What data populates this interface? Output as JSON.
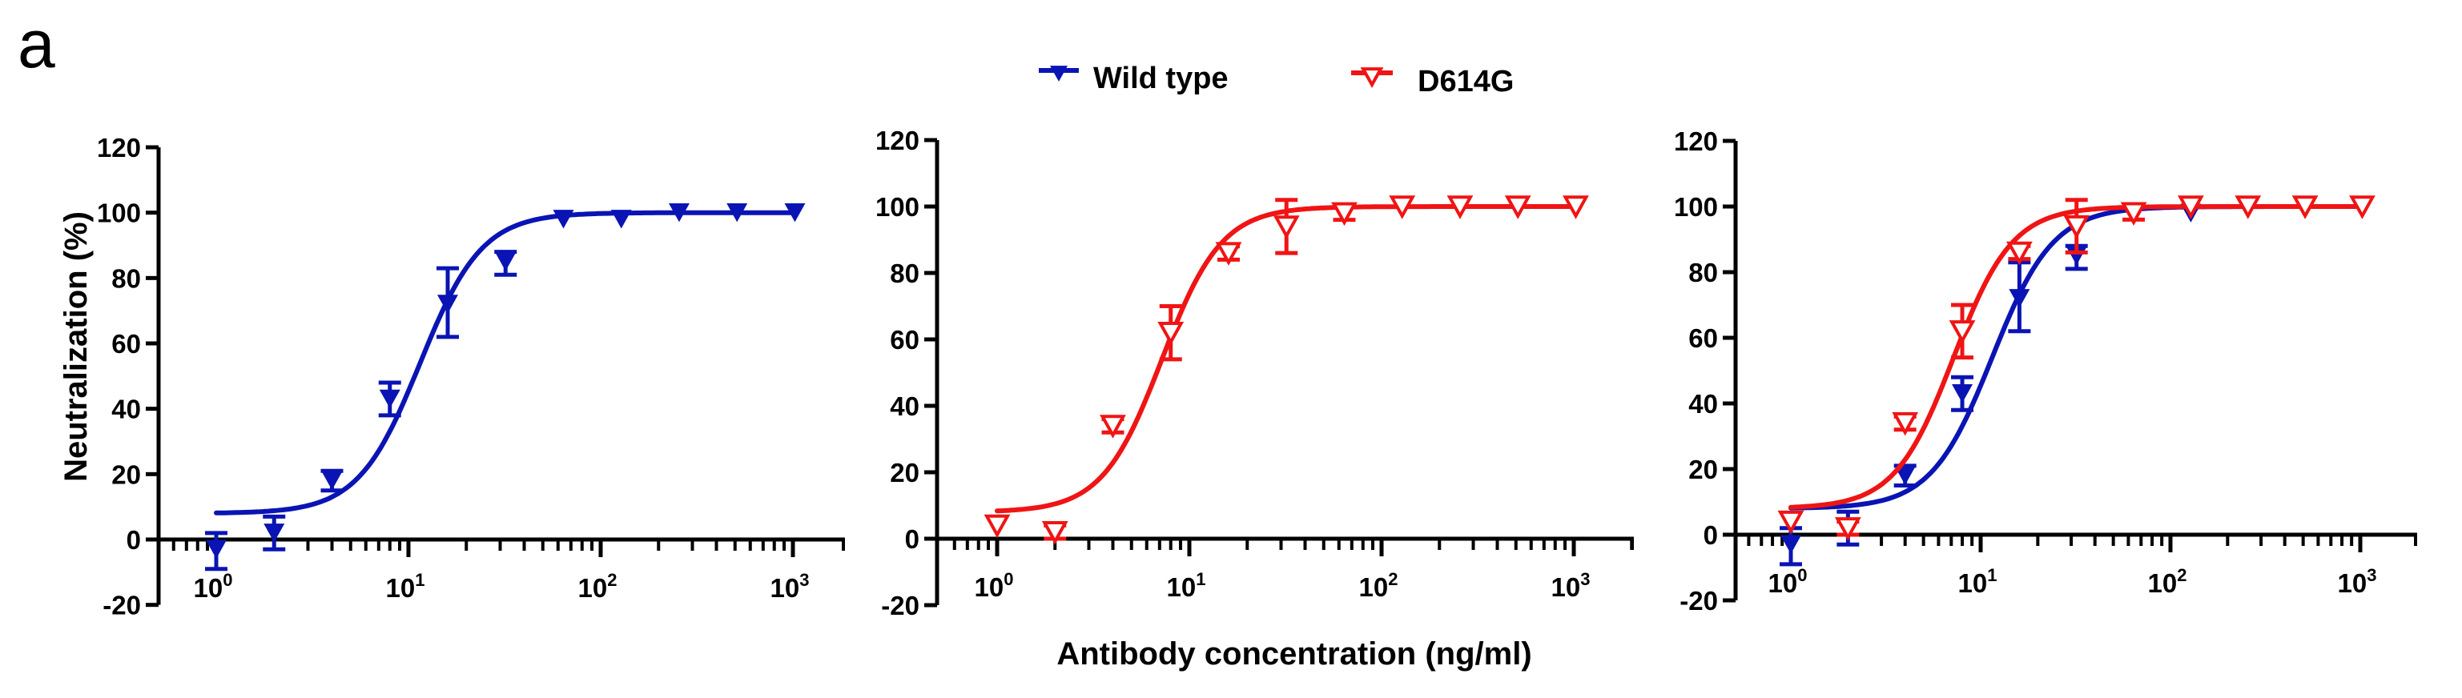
{
  "panel_label": "a",
  "legend": [
    {
      "label": "Wild type",
      "color": "#0a14b4",
      "marker": "filled-down-triangle"
    },
    {
      "label": "D614G",
      "color": "#f01414",
      "marker": "open-down-triangle"
    }
  ],
  "shared_xlabel": "Antibody concentration (ng/ml)",
  "chart_data": [
    {
      "type": "scatter",
      "panel": 1,
      "xscale": "log",
      "xlabel": "",
      "ylabel": "Neutralization (%)",
      "xlim": [
        0.5,
        2100
      ],
      "ylim": [
        -20,
        120
      ],
      "yticks": [
        -20,
        0,
        20,
        40,
        60,
        80,
        100,
        120
      ],
      "xticks": [
        {
          "base": "10",
          "exp": "0",
          "value": 1
        },
        {
          "base": "10",
          "exp": "1",
          "value": 10
        },
        {
          "base": "10",
          "exp": "2",
          "value": 100
        },
        {
          "base": "10",
          "exp": "3",
          "value": 1000
        }
      ],
      "series": [
        {
          "name": "Wild type",
          "x": [
            1,
            2,
            4,
            8,
            16,
            32,
            64,
            128,
            256,
            512,
            1024
          ],
          "y": [
            -3,
            2,
            18,
            43,
            72,
            85,
            98,
            98,
            100,
            100,
            100
          ],
          "err_low": [
            -9,
            -3,
            15,
            38,
            62,
            81,
            98,
            98,
            100,
            100,
            100
          ],
          "err_high": [
            2,
            7,
            21,
            48,
            83,
            88,
            98,
            98,
            100,
            100,
            100
          ],
          "fit": {
            "bottom": 8,
            "top": 100,
            "ic50": 11.5,
            "hill": 2.7
          }
        }
      ]
    },
    {
      "type": "scatter",
      "panel": 2,
      "xscale": "log",
      "xlabel": "Antibody concentration (ng/ml)",
      "ylabel": "",
      "xlim": [
        0.5,
        2100
      ],
      "ylim": [
        -20,
        120
      ],
      "yticks": [
        -20,
        0,
        20,
        40,
        60,
        80,
        100,
        120
      ],
      "xticks": [
        {
          "base": "10",
          "exp": "0",
          "value": 1
        },
        {
          "base": "10",
          "exp": "1",
          "value": 10
        },
        {
          "base": "10",
          "exp": "2",
          "value": 100
        },
        {
          "base": "10",
          "exp": "3",
          "value": 1000
        }
      ],
      "series": [
        {
          "name": "D614G",
          "x": [
            1,
            2,
            4,
            8,
            16,
            32,
            64,
            128,
            256,
            512,
            1024
          ],
          "y": [
            4,
            2,
            34,
            62,
            86,
            94,
            98,
            100,
            100,
            100,
            100
          ],
          "err_low": [
            4,
            0,
            32,
            54,
            84,
            86,
            96,
            100,
            100,
            100,
            100
          ],
          "err_high": [
            4,
            4,
            36,
            70,
            88,
            102,
            100,
            100,
            100,
            100,
            100
          ],
          "fit": {
            "bottom": 8,
            "top": 100,
            "ic50": 7.2,
            "hill": 2.8
          }
        }
      ]
    },
    {
      "type": "scatter",
      "panel": 3,
      "xscale": "log",
      "xlabel": "",
      "ylabel": "",
      "xlim": [
        0.5,
        2100
      ],
      "ylim": [
        -20,
        120
      ],
      "yticks": [
        -20,
        0,
        20,
        40,
        60,
        80,
        100,
        120
      ],
      "xticks": [
        {
          "base": "10",
          "exp": "0",
          "value": 1
        },
        {
          "base": "10",
          "exp": "1",
          "value": 10
        },
        {
          "base": "10",
          "exp": "2",
          "value": 100
        },
        {
          "base": "10",
          "exp": "3",
          "value": 1000
        }
      ],
      "series": [
        {
          "name": "Wild type",
          "x": [
            1,
            2,
            4,
            8,
            16,
            32,
            64,
            128,
            256,
            512,
            1024
          ],
          "y": [
            -3,
            2,
            18,
            43,
            72,
            85,
            98,
            98,
            100,
            100,
            100
          ],
          "err_low": [
            -9,
            -3,
            15,
            38,
            62,
            81,
            98,
            98,
            100,
            100,
            100
          ],
          "err_high": [
            2,
            7,
            21,
            48,
            83,
            88,
            98,
            98,
            100,
            100,
            100
          ],
          "fit": {
            "bottom": 8,
            "top": 100,
            "ic50": 11.5,
            "hill": 2.7
          }
        },
        {
          "name": "D614G",
          "x": [
            1,
            2,
            4,
            8,
            16,
            32,
            64,
            128,
            256,
            512,
            1024
          ],
          "y": [
            4,
            2,
            34,
            62,
            86,
            94,
            98,
            100,
            100,
            100,
            100
          ],
          "err_low": [
            4,
            0,
            32,
            54,
            84,
            86,
            96,
            100,
            100,
            100,
            100
          ],
          "err_high": [
            4,
            4,
            36,
            70,
            88,
            102,
            100,
            100,
            100,
            100,
            100
          ],
          "fit": {
            "bottom": 8,
            "top": 100,
            "ic50": 7.2,
            "hill": 2.8
          }
        }
      ]
    }
  ]
}
